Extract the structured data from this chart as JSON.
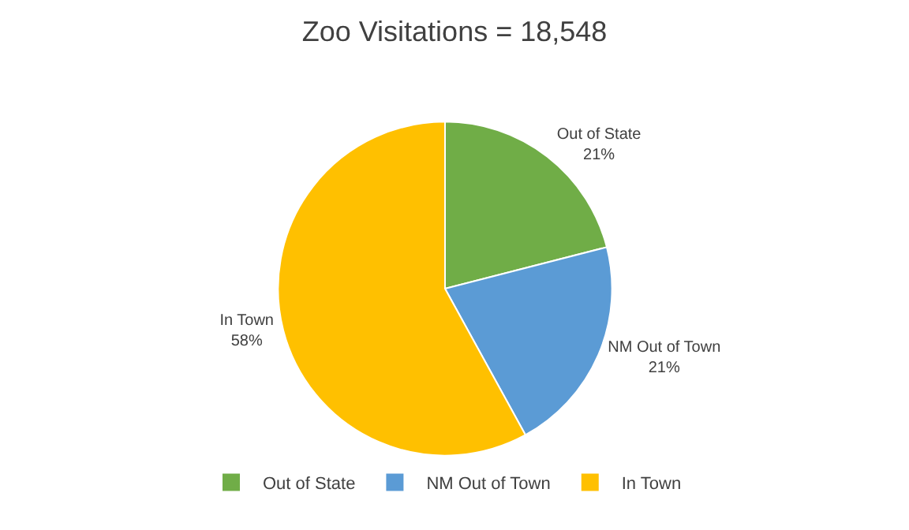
{
  "chart_data": {
    "type": "pie",
    "title": "Zoo Visitations = 18,548",
    "categories": [
      "Out of State",
      "NM Out of Town",
      "In Town"
    ],
    "values": [
      21,
      21,
      58
    ],
    "value_labels": [
      "21%",
      "21%",
      "58%"
    ],
    "colors": [
      "#70ad47",
      "#5b9bd5",
      "#ffc000"
    ],
    "legend": "bottom"
  }
}
